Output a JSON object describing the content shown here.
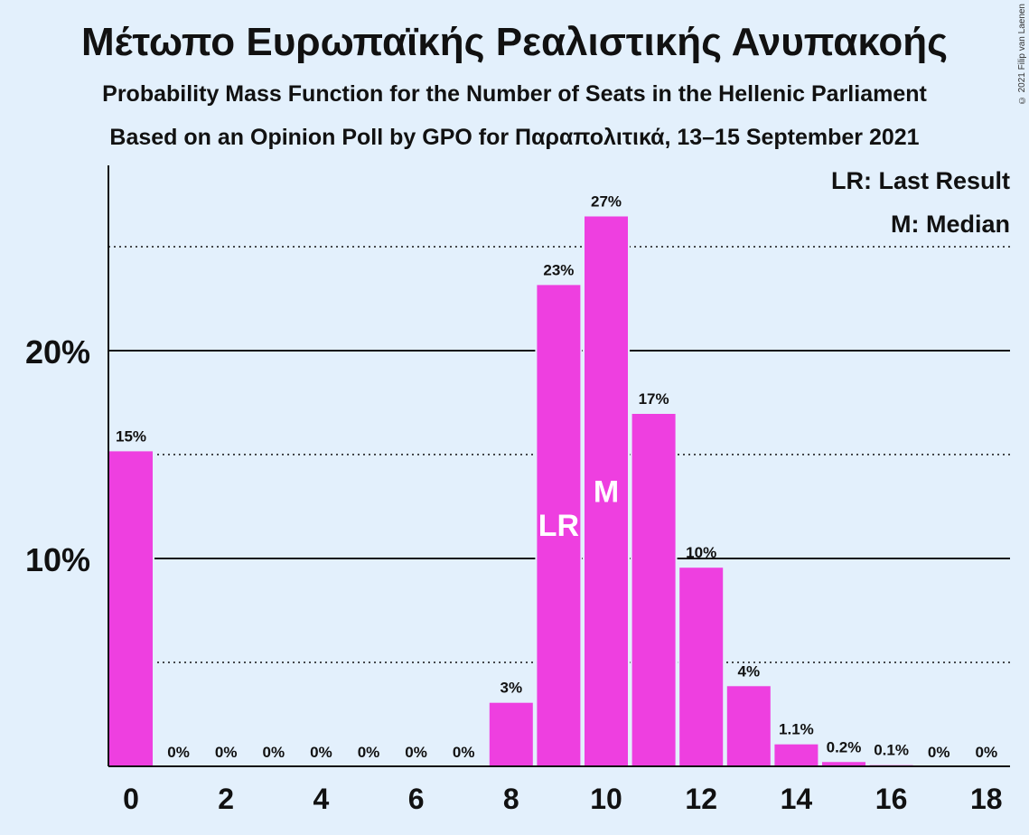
{
  "title": "Μέτωπο Ευρωπαϊκής Ρεαλιστικής Ανυπακοής",
  "subtitle1": "Probability Mass Function for the Number of Seats in the Hellenic Parliament",
  "subtitle2": "Based on an Opinion Poll by GPO for Παραπολιτικά, 13–15 September 2021",
  "copyright": "© 2021 Filip van Laenen",
  "legend": {
    "last_result": "LR: Last Result",
    "median": "M: Median"
  },
  "colors": {
    "bar": "#ee3fe0",
    "background": "#e3f0fc",
    "text": "#111111"
  },
  "chart_data": {
    "type": "bar",
    "categories": [
      0,
      1,
      2,
      3,
      4,
      5,
      6,
      7,
      8,
      9,
      10,
      11,
      12,
      13,
      14,
      15,
      16,
      17,
      18
    ],
    "values": [
      15.2,
      0,
      0,
      0,
      0,
      0,
      0,
      0,
      3.1,
      23.2,
      26.5,
      17.0,
      9.6,
      3.9,
      1.1,
      0.25,
      0.1,
      0,
      0
    ],
    "value_labels": [
      "15%",
      "0%",
      "0%",
      "0%",
      "0%",
      "0%",
      "0%",
      "0%",
      "3%",
      "23%",
      "27%",
      "17%",
      "10%",
      "4%",
      "1.1%",
      "0.2%",
      "0.1%",
      "0%",
      "0%"
    ],
    "x_tick_labels": [
      "0",
      "2",
      "4",
      "6",
      "8",
      "10",
      "12",
      "14",
      "16",
      "18"
    ],
    "y_tick_labels": [
      "10%",
      "20%"
    ],
    "y_solid_gridlines": [
      10,
      20
    ],
    "y_dotted_gridlines": [
      5,
      15,
      25
    ],
    "ylim": [
      0,
      28.5
    ],
    "last_result": {
      "seats": 9,
      "label": "LR"
    },
    "median": {
      "seats": 10,
      "label": "M"
    },
    "legend_position": "top-right"
  }
}
